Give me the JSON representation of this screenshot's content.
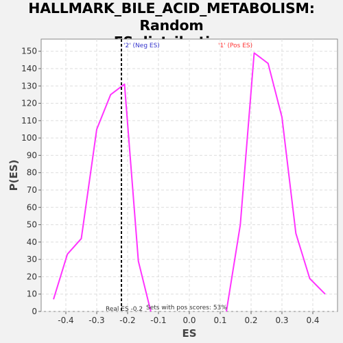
{
  "chart_data": {
    "type": "line",
    "title": "HALLMARK_BILE_ACID_METABOLISM: Random ES distribution",
    "title_lines": [
      "HALLMARK_BILE_ACID_METABOLISM: Random",
      "ES distribution"
    ],
    "xlabel": "ES",
    "ylabel": "P(ES)",
    "xlim": [
      -0.48,
      0.48
    ],
    "ylim": [
      0,
      157
    ],
    "x_ticks": [
      -0.4,
      -0.3,
      -0.2,
      -0.1,
      0.0,
      0.1,
      0.2,
      0.3,
      0.4
    ],
    "x_tick_labels": [
      "-0.4",
      "-0.3",
      "-0.2",
      "-0.1",
      "0.0",
      "0.1",
      "0.2",
      "0.3",
      "0.4"
    ],
    "y_ticks": [
      0,
      10,
      20,
      30,
      40,
      50,
      60,
      70,
      80,
      90,
      100,
      110,
      120,
      130,
      140,
      150
    ],
    "grid": true,
    "series": [
      {
        "color": "#ff33ff",
        "x": [
          -0.44,
          -0.395,
          -0.35,
          -0.3,
          -0.255,
          -0.21,
          -0.165,
          -0.125
        ],
        "y": [
          7,
          33,
          42,
          105,
          125,
          131,
          29,
          0
        ]
      },
      {
        "color": "#ff33ff",
        "x": [
          0.12,
          0.165,
          0.21,
          0.255,
          0.3,
          0.345,
          0.39,
          0.44
        ],
        "y": [
          0,
          50,
          149,
          143,
          112,
          45,
          19,
          10
        ]
      }
    ],
    "reference_line": {
      "x": -0.22,
      "color": "#000000",
      "style": "dashed"
    },
    "annotations": {
      "neg": {
        "text": "'2' (Neg ES)",
        "color": "#3333cc",
        "x": 0.0,
        "y": 0
      },
      "pos": {
        "text": "'1' (Pos ES)",
        "color": "#ff3333",
        "x": 0.0,
        "y": 0
      },
      "real_es": {
        "text": "Real ES -0.2",
        "color": "#333333"
      },
      "pos_scores": {
        "text": "Sets with pos scores: 53%",
        "color": "#333333"
      }
    }
  }
}
